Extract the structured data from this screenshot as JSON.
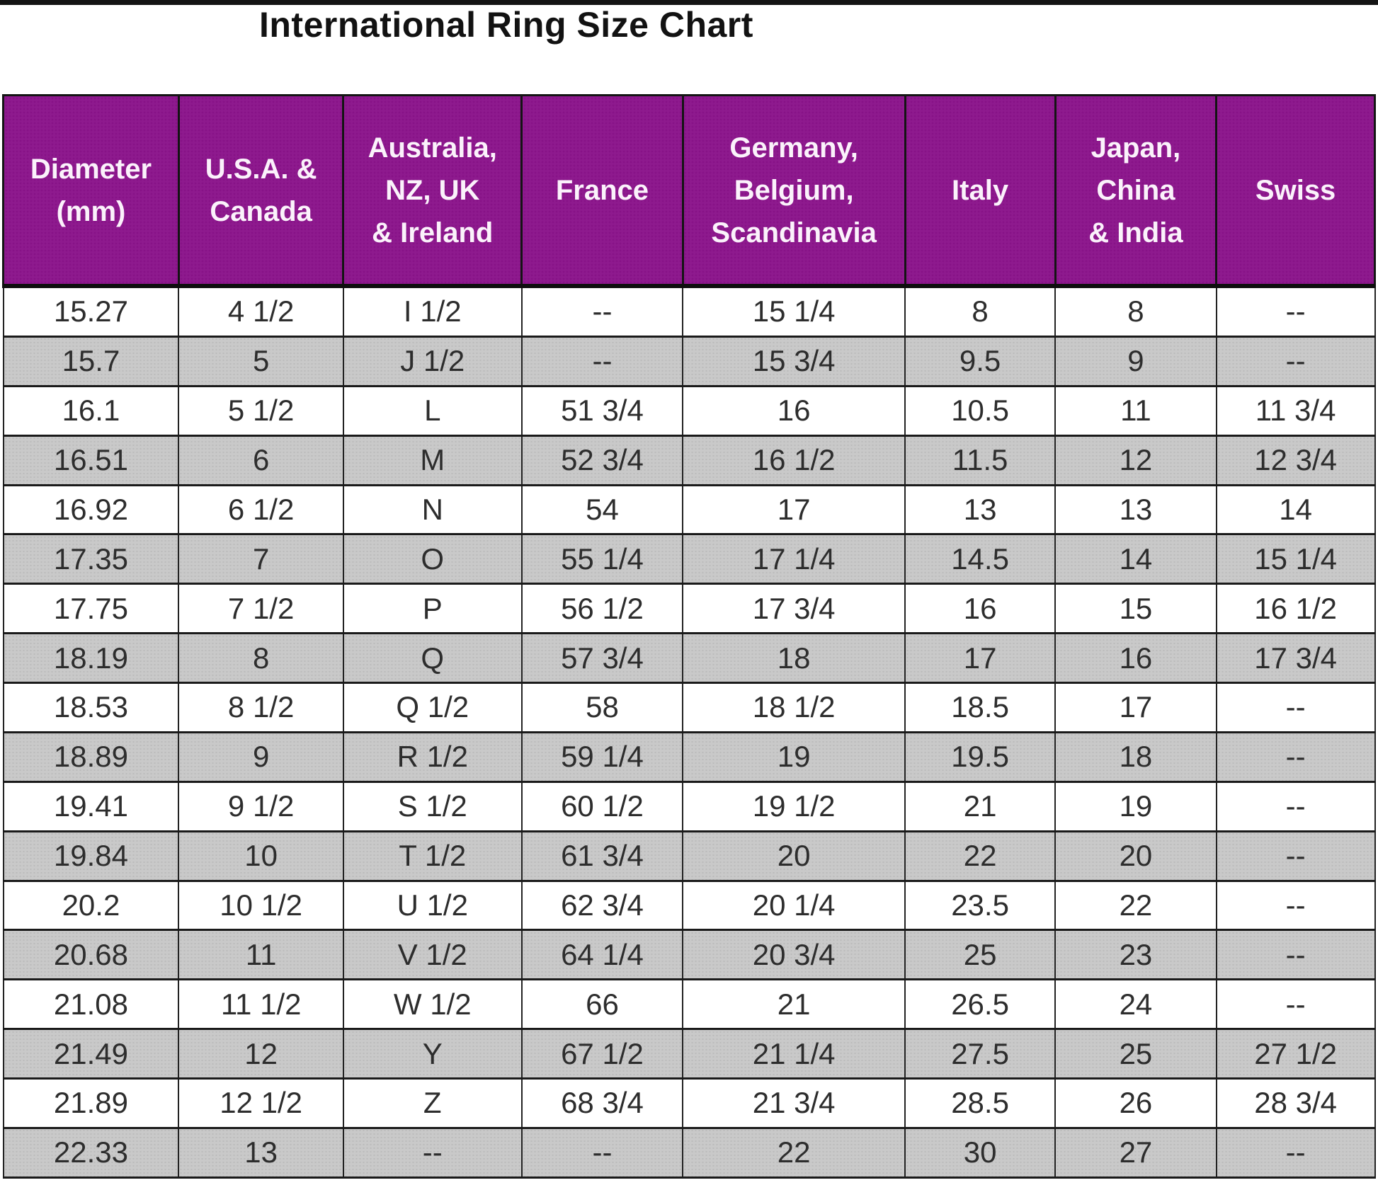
{
  "title": "International Ring Size Chart",
  "colors": {
    "header_bg": "#8e1a8e",
    "header_text": "#ffffff",
    "row_bg": "#ffffff",
    "row_alt_bg": "#c9c9c9",
    "border": "#1a1a1a",
    "cell_text": "#2d2d2d",
    "title_text": "#121212"
  },
  "chart_data": {
    "type": "table",
    "title": "International Ring Size Chart",
    "columns": [
      "Diameter\n(mm)",
      "U.S.A. &\nCanada",
      "Australia,\nNZ, UK\n& Ireland",
      "France",
      "Germany,\nBelgium,\nScandinavia",
      "Italy",
      "Japan,\nChina\n& India",
      "Swiss"
    ],
    "rows": [
      [
        "15.27",
        "4 1/2",
        "I 1/2",
        "--",
        "15 1/4",
        "8",
        "8",
        "--"
      ],
      [
        "15.7",
        "5",
        "J 1/2",
        "--",
        "15 3/4",
        "9.5",
        "9",
        "--"
      ],
      [
        "16.1",
        "5 1/2",
        "L",
        "51 3/4",
        "16",
        "10.5",
        "11",
        "11 3/4"
      ],
      [
        "16.51",
        "6",
        "M",
        "52 3/4",
        "16 1/2",
        "11.5",
        "12",
        "12 3/4"
      ],
      [
        "16.92",
        "6 1/2",
        "N",
        "54",
        "17",
        "13",
        "13",
        "14"
      ],
      [
        "17.35",
        "7",
        "O",
        "55 1/4",
        "17 1/4",
        "14.5",
        "14",
        "15 1/4"
      ],
      [
        "17.75",
        "7 1/2",
        "P",
        "56 1/2",
        "17 3/4",
        "16",
        "15",
        "16 1/2"
      ],
      [
        "18.19",
        "8",
        "Q",
        "57 3/4",
        "18",
        "17",
        "16",
        "17 3/4"
      ],
      [
        "18.53",
        "8 1/2",
        "Q 1/2",
        "58",
        "18 1/2",
        "18.5",
        "17",
        "--"
      ],
      [
        "18.89",
        "9",
        "R 1/2",
        "59 1/4",
        "19",
        "19.5",
        "18",
        "--"
      ],
      [
        "19.41",
        "9 1/2",
        "S 1/2",
        "60 1/2",
        "19 1/2",
        "21",
        "19",
        "--"
      ],
      [
        "19.84",
        "10",
        "T 1/2",
        "61 3/4",
        "20",
        "22",
        "20",
        "--"
      ],
      [
        "20.2",
        "10 1/2",
        "U 1/2",
        "62 3/4",
        "20 1/4",
        "23.5",
        "22",
        "--"
      ],
      [
        "20.68",
        "11",
        "V 1/2",
        "64 1/4",
        "20 3/4",
        "25",
        "23",
        "--"
      ],
      [
        "21.08",
        "11 1/2",
        "W 1/2",
        "66",
        "21",
        "26.5",
        "24",
        "--"
      ],
      [
        "21.49",
        "12",
        "Y",
        "67 1/2",
        "21 1/4",
        "27.5",
        "25",
        "27 1/2"
      ],
      [
        "21.89",
        "12 1/2",
        "Z",
        "68 3/4",
        "21 3/4",
        "28.5",
        "26",
        "28 3/4"
      ],
      [
        "22.33",
        "13",
        "--",
        "--",
        "22",
        "30",
        "27",
        "--"
      ]
    ]
  }
}
